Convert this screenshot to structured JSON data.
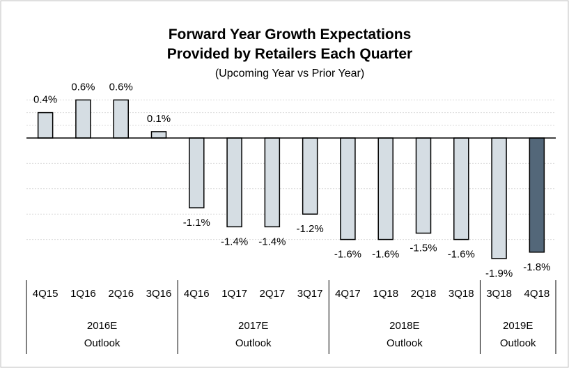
{
  "chart_data": {
    "type": "bar",
    "title_lines": [
      "Forward Year Growth Expectations",
      "Provided by Retailers Each Quarter"
    ],
    "subtitle": "(Upcoming Year vs Prior Year)",
    "categories": [
      "4Q15",
      "1Q16",
      "2Q16",
      "3Q16",
      "4Q16",
      "1Q17",
      "2Q17",
      "3Q17",
      "4Q17",
      "1Q18",
      "2Q18",
      "3Q18",
      "3Q18",
      "4Q18"
    ],
    "values": [
      0.4,
      0.6,
      0.6,
      0.1,
      -1.1,
      -1.4,
      -1.4,
      -1.2,
      -1.6,
      -1.6,
      -1.5,
      -1.6,
      -1.9,
      -1.8
    ],
    "data_labels": [
      "0.4%",
      "0.6%",
      "0.6%",
      "0.1%",
      "-1.1%",
      "-1.4%",
      "-1.4%",
      "-1.2%",
      "-1.6%",
      "-1.6%",
      "-1.5%",
      "-1.6%",
      "-1.9%",
      "-1.8%"
    ],
    "groups": [
      {
        "line1": "2016E",
        "line2": "Outlook",
        "count": 4
      },
      {
        "line1": "2017E",
        "line2": "Outlook",
        "count": 4
      },
      {
        "line1": "2018E",
        "line2": "Outlook",
        "count": 4
      },
      {
        "line1": "2019E",
        "line2": "Outlook",
        "count": 2
      }
    ],
    "ylim": [
      -2.0,
      0.9
    ],
    "grid": true,
    "colors": {
      "bar": "#d5dde3",
      "highlight": "#536779",
      "highlight_index": 13,
      "outline": "#000000",
      "grid": "#d9d9d9"
    }
  }
}
